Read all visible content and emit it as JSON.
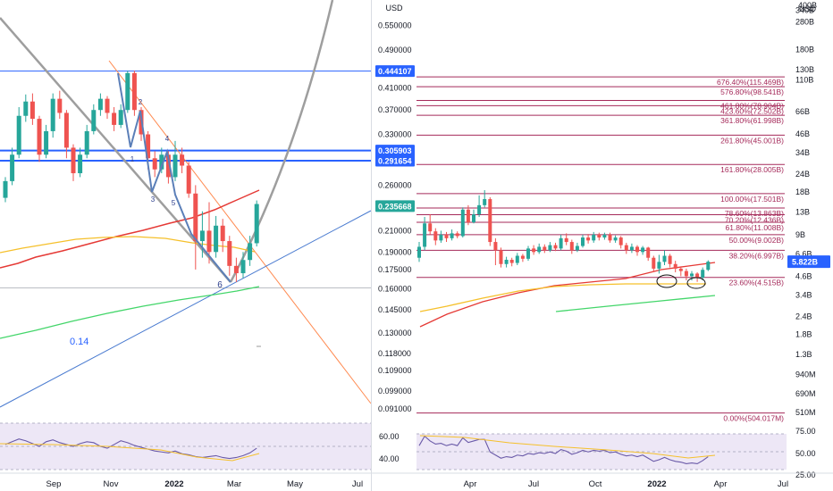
{
  "left_chart": {
    "currency": "USD",
    "y_ticks": [
      "0.550000",
      "0.490000",
      "0.410000",
      "0.370000",
      "0.330000",
      "0.260000",
      "0.210000",
      "0.190000",
      "0.175000",
      "0.160000",
      "0.145000",
      "0.130000",
      "0.118000",
      "0.109000",
      "0.099000",
      "0.091000"
    ],
    "price_badges": [
      {
        "label": "0.444107",
        "color": "#2962ff"
      },
      {
        "label": "0.305903",
        "color": "#2962ff"
      },
      {
        "label": "0.291654",
        "color": "#2962ff"
      },
      {
        "label": "0.235668",
        "color": "#26a69a"
      }
    ],
    "wave_labels": [
      "1",
      "2",
      "3",
      "4",
      "5",
      "6"
    ],
    "annotation": "0.14",
    "x_ticks": [
      "Sep",
      "Nov",
      "2022",
      "Mar",
      "May",
      "Jul"
    ],
    "rsi_ticks": [
      "60.00",
      "40.00"
    ]
  },
  "right_chart": {
    "currency": "USD",
    "y_ticks": [
      "400B",
      "340B",
      "280B",
      "180B",
      "130B",
      "110B",
      "66B",
      "46B",
      "34B",
      "24B",
      "18B",
      "13B",
      "9B",
      "6.6B",
      "4.6B",
      "3.4B",
      "2.4B",
      "1.8B",
      "1.3B",
      "940M",
      "690M",
      "510M"
    ],
    "price_badge": {
      "label": "5.822B",
      "color": "#2962ff"
    },
    "fib_levels": [
      {
        "label": "676.40%(115.469B)"
      },
      {
        "label": "576.80%(98.541B)"
      },
      {
        "label": "461.80%(78.904B)"
      },
      {
        "label": "423.60%(72.502B)"
      },
      {
        "label": "361.80%(61.998B)"
      },
      {
        "label": "261.80%(45.001B)"
      },
      {
        "label": "161.80%(28.005B)"
      },
      {
        "label": "100.00%(17.501B)"
      },
      {
        "label": "78.60%(13.863B)"
      },
      {
        "label": "70.20%(12.436B)"
      },
      {
        "label": "61.80%(11.008B)"
      },
      {
        "label": "50.00%(9.002B)"
      },
      {
        "label": "38.20%(6.997B)"
      },
      {
        "label": "23.60%(4.515B)"
      },
      {
        "label": "0.00%(504.017M)"
      }
    ],
    "x_ticks": [
      "Apr",
      "Jul",
      "Oct",
      "2022",
      "Apr",
      "Jul"
    ],
    "rsi_ticks": [
      "75.00",
      "50.00",
      "25.00"
    ]
  },
  "colors": {
    "fib": "#a52a5a",
    "up": "#26a69a",
    "down": "#ef5350",
    "ma_red": "#e53935",
    "ma_yellow": "#f5c02b",
    "ma_green": "#43d66a",
    "trend_blue": "#2962ff",
    "orange_line": "#ff8a50",
    "gray_line": "#9e9e9e",
    "rsi_bg": "#ede7f6",
    "rsi_line": "#6a5aa8"
  },
  "chart_data": [
    {
      "type": "candlestick",
      "title": "",
      "ylabel": "USD",
      "y_scale": "log",
      "ylim": [
        0.088,
        0.62
      ],
      "x_ticks": [
        "Sep",
        "Nov",
        "2022",
        "Mar",
        "May",
        "Jul"
      ],
      "price_levels": [
        0.444107,
        0.305903,
        0.291654
      ],
      "last_price": 0.235668,
      "indicators": [
        "moving average (red)",
        "moving average (yellow)",
        "moving average (green)",
        "RSI"
      ],
      "candles": [
        {
          "open": 0.245,
          "close": 0.265,
          "high": 0.27,
          "low": 0.24
        },
        {
          "open": 0.265,
          "close": 0.3,
          "high": 0.31,
          "low": 0.26
        },
        {
          "open": 0.3,
          "close": 0.36,
          "high": 0.375,
          "low": 0.295
        },
        {
          "open": 0.36,
          "close": 0.385,
          "high": 0.398,
          "low": 0.35
        },
        {
          "open": 0.385,
          "close": 0.355,
          "high": 0.4,
          "low": 0.345
        },
        {
          "open": 0.355,
          "close": 0.3,
          "high": 0.36,
          "low": 0.29
        },
        {
          "open": 0.3,
          "close": 0.335,
          "high": 0.345,
          "low": 0.295
        },
        {
          "open": 0.335,
          "close": 0.39,
          "high": 0.4,
          "low": 0.325
        },
        {
          "open": 0.39,
          "close": 0.365,
          "high": 0.405,
          "low": 0.355
        },
        {
          "open": 0.365,
          "close": 0.31,
          "high": 0.37,
          "low": 0.295
        },
        {
          "open": 0.31,
          "close": 0.275,
          "high": 0.315,
          "low": 0.265
        },
        {
          "open": 0.275,
          "close": 0.3,
          "high": 0.31,
          "low": 0.27
        },
        {
          "open": 0.3,
          "close": 0.335,
          "high": 0.345,
          "low": 0.295
        },
        {
          "open": 0.335,
          "close": 0.37,
          "high": 0.38,
          "low": 0.33
        },
        {
          "open": 0.37,
          "close": 0.39,
          "high": 0.4,
          "low": 0.36
        },
        {
          "open": 0.39,
          "close": 0.365,
          "high": 0.395,
          "low": 0.355
        },
        {
          "open": 0.365,
          "close": 0.345,
          "high": 0.375,
          "low": 0.335
        },
        {
          "open": 0.345,
          "close": 0.37,
          "high": 0.38,
          "low": 0.34
        },
        {
          "open": 0.37,
          "close": 0.44,
          "high": 0.445,
          "low": 0.365
        },
        {
          "open": 0.44,
          "close": 0.37,
          "high": 0.445,
          "low": 0.36
        },
        {
          "open": 0.37,
          "close": 0.33,
          "high": 0.375,
          "low": 0.32
        },
        {
          "open": 0.33,
          "close": 0.295,
          "high": 0.335,
          "low": 0.28
        },
        {
          "open": 0.295,
          "close": 0.28,
          "high": 0.305,
          "low": 0.27
        },
        {
          "open": 0.28,
          "close": 0.3,
          "high": 0.31,
          "low": 0.275
        },
        {
          "open": 0.3,
          "close": 0.27,
          "high": 0.305,
          "low": 0.262
        },
        {
          "open": 0.27,
          "close": 0.3,
          "high": 0.32,
          "low": 0.265
        },
        {
          "open": 0.3,
          "close": 0.285,
          "high": 0.31,
          "low": 0.275
        },
        {
          "open": 0.285,
          "close": 0.25,
          "high": 0.29,
          "low": 0.245
        },
        {
          "open": 0.25,
          "close": 0.2,
          "high": 0.26,
          "low": 0.175
        },
        {
          "open": 0.2,
          "close": 0.21,
          "high": 0.23,
          "low": 0.185
        },
        {
          "open": 0.21,
          "close": 0.19,
          "high": 0.24,
          "low": 0.18
        },
        {
          "open": 0.19,
          "close": 0.215,
          "high": 0.225,
          "low": 0.185
        },
        {
          "open": 0.215,
          "close": 0.2,
          "high": 0.222,
          "low": 0.19
        },
        {
          "open": 0.2,
          "close": 0.178,
          "high": 0.205,
          "low": 0.17
        },
        {
          "open": 0.178,
          "close": 0.172,
          "high": 0.185,
          "low": 0.165
        },
        {
          "open": 0.172,
          "close": 0.183,
          "high": 0.19,
          "low": 0.168
        },
        {
          "open": 0.183,
          "close": 0.198,
          "high": 0.205,
          "low": 0.178
        },
        {
          "open": 0.198,
          "close": 0.238,
          "high": 0.242,
          "low": 0.195
        }
      ],
      "rsi": [
        52,
        55,
        58,
        56,
        53,
        50,
        55,
        57,
        54,
        52,
        50,
        53,
        55,
        54,
        50,
        48,
        52,
        56,
        54,
        51,
        49,
        47,
        45,
        44,
        43,
        45,
        42,
        41,
        39,
        38,
        39,
        40,
        38,
        37,
        38,
        40,
        43,
        48
      ]
    },
    {
      "type": "candlestick",
      "title": "",
      "ylabel": "USD",
      "y_scale": "log",
      "ylim": [
        0.48,
        400
      ],
      "x_ticks": [
        "Apr",
        "Jul",
        "Oct",
        "2022",
        "Apr",
        "Jul"
      ],
      "last_price": 5.822,
      "fib_levels": [
        {
          "ratio": 6.764,
          "value": 115.469
        },
        {
          "ratio": 5.768,
          "value": 98.541
        },
        {
          "ratio": 4.618,
          "value": 78.904
        },
        {
          "ratio": 4.236,
          "value": 72.502
        },
        {
          "ratio": 3.618,
          "value": 61.998
        },
        {
          "ratio": 2.618,
          "value": 45.001
        },
        {
          "ratio": 1.618,
          "value": 28.005
        },
        {
          "ratio": 1.0,
          "value": 17.501
        },
        {
          "ratio": 0.786,
          "value": 13.863
        },
        {
          "ratio": 0.702,
          "value": 12.436
        },
        {
          "ratio": 0.618,
          "value": 11.008
        },
        {
          "ratio": 0.5,
          "value": 9.002
        },
        {
          "ratio": 0.382,
          "value": 6.997
        },
        {
          "ratio": 0.236,
          "value": 4.515
        },
        {
          "ratio": 0.0,
          "value": 0.504
        }
      ],
      "indicators": [
        "moving average (red)",
        "moving average (yellow)",
        "moving average (green)",
        "RSI"
      ],
      "candles": [
        {
          "open": 6.2,
          "close": 7.4,
          "high": 8.0,
          "low": 5.8
        },
        {
          "open": 7.4,
          "close": 10.8,
          "high": 12.0,
          "low": 7.0
        },
        {
          "open": 10.8,
          "close": 9.5,
          "high": 12.5,
          "low": 9.0
        },
        {
          "open": 9.5,
          "close": 8.2,
          "high": 10.0,
          "low": 7.6
        },
        {
          "open": 8.2,
          "close": 9.0,
          "high": 9.6,
          "low": 7.9
        },
        {
          "open": 9.0,
          "close": 8.5,
          "high": 9.4,
          "low": 8.0
        },
        {
          "open": 8.5,
          "close": 9.2,
          "high": 9.8,
          "low": 8.2
        },
        {
          "open": 9.2,
          "close": 8.8,
          "high": 9.5,
          "low": 8.5
        },
        {
          "open": 8.8,
          "close": 13.5,
          "high": 14.0,
          "low": 8.6
        },
        {
          "open": 13.5,
          "close": 11.0,
          "high": 14.5,
          "low": 10.5
        },
        {
          "open": 11.0,
          "close": 12.5,
          "high": 13.5,
          "low": 10.8
        },
        {
          "open": 12.5,
          "close": 14.5,
          "high": 17.0,
          "low": 12.0
        },
        {
          "open": 14.5,
          "close": 16.0,
          "high": 18.5,
          "low": 14.0
        },
        {
          "open": 16.0,
          "close": 8.0,
          "high": 16.5,
          "low": 7.5
        },
        {
          "open": 8.0,
          "close": 7.0,
          "high": 8.5,
          "low": 5.5
        },
        {
          "open": 7.0,
          "close": 5.6,
          "high": 7.3,
          "low": 5.3
        },
        {
          "open": 5.6,
          "close": 6.0,
          "high": 6.3,
          "low": 5.3
        },
        {
          "open": 6.0,
          "close": 5.7,
          "high": 6.2,
          "low": 5.4
        },
        {
          "open": 5.7,
          "close": 6.4,
          "high": 6.7,
          "low": 5.5
        },
        {
          "open": 6.4,
          "close": 6.1,
          "high": 6.6,
          "low": 5.8
        },
        {
          "open": 6.1,
          "close": 7.2,
          "high": 7.5,
          "low": 5.9
        },
        {
          "open": 7.2,
          "close": 6.8,
          "high": 7.6,
          "low": 6.5
        },
        {
          "open": 6.8,
          "close": 7.4,
          "high": 7.8,
          "low": 6.6
        },
        {
          "open": 7.4,
          "close": 7.0,
          "high": 7.7,
          "low": 6.7
        },
        {
          "open": 7.0,
          "close": 7.6,
          "high": 8.0,
          "low": 6.8
        },
        {
          "open": 7.6,
          "close": 7.2,
          "high": 7.9,
          "low": 6.9
        },
        {
          "open": 7.2,
          "close": 8.5,
          "high": 9.0,
          "low": 7.0
        },
        {
          "open": 8.5,
          "close": 8.0,
          "high": 9.2,
          "low": 7.6
        },
        {
          "open": 8.0,
          "close": 7.0,
          "high": 8.3,
          "low": 6.6
        },
        {
          "open": 7.0,
          "close": 7.5,
          "high": 7.9,
          "low": 6.8
        },
        {
          "open": 7.5,
          "close": 8.6,
          "high": 9.0,
          "low": 7.3
        },
        {
          "open": 8.6,
          "close": 8.2,
          "high": 9.1,
          "low": 7.8
        },
        {
          "open": 8.2,
          "close": 9.0,
          "high": 9.4,
          "low": 7.9
        },
        {
          "open": 9.0,
          "close": 8.6,
          "high": 9.3,
          "low": 8.2
        },
        {
          "open": 8.6,
          "close": 9.0,
          "high": 9.3,
          "low": 8.3
        },
        {
          "open": 9.0,
          "close": 8.2,
          "high": 9.3,
          "low": 7.9
        },
        {
          "open": 8.2,
          "close": 8.6,
          "high": 8.9,
          "low": 7.9
        },
        {
          "open": 8.6,
          "close": 7.6,
          "high": 8.8,
          "low": 7.2
        },
        {
          "open": 7.6,
          "close": 7.0,
          "high": 7.9,
          "low": 6.6
        },
        {
          "open": 7.0,
          "close": 7.4,
          "high": 7.8,
          "low": 6.7
        },
        {
          "open": 7.4,
          "close": 6.8,
          "high": 7.6,
          "low": 6.4
        },
        {
          "open": 6.8,
          "close": 7.3,
          "high": 7.5,
          "low": 6.5
        },
        {
          "open": 7.3,
          "close": 6.2,
          "high": 7.4,
          "low": 5.9
        },
        {
          "open": 6.2,
          "close": 5.2,
          "high": 6.4,
          "low": 4.9
        },
        {
          "open": 5.2,
          "close": 5.8,
          "high": 6.5,
          "low": 4.8
        },
        {
          "open": 5.8,
          "close": 6.4,
          "high": 7.0,
          "low": 5.5
        },
        {
          "open": 6.4,
          "close": 5.6,
          "high": 6.6,
          "low": 5.3
        },
        {
          "open": 5.6,
          "close": 5.2,
          "high": 5.9,
          "low": 4.9
        },
        {
          "open": 5.2,
          "close": 5.0,
          "high": 5.4,
          "low": 4.6
        },
        {
          "open": 5.0,
          "close": 4.6,
          "high": 5.2,
          "low": 4.3
        },
        {
          "open": 4.6,
          "close": 4.8,
          "high": 5.0,
          "low": 4.3
        },
        {
          "open": 4.8,
          "close": 4.5,
          "high": 4.9,
          "low": 4.2
        },
        {
          "open": 4.5,
          "close": 5.1,
          "high": 5.3,
          "low": 4.3
        },
        {
          "open": 5.1,
          "close": 5.82,
          "high": 5.95,
          "low": 5.0
        }
      ],
      "rsi": [
        60,
        72,
        66,
        62,
        63,
        60,
        62,
        60,
        70,
        64,
        66,
        68,
        68,
        52,
        48,
        44,
        46,
        45,
        48,
        47,
        50,
        49,
        51,
        50,
        52,
        50,
        55,
        53,
        49,
        51,
        54,
        52,
        54,
        53,
        54,
        51,
        52,
        49,
        47,
        48,
        46,
        48,
        44,
        40,
        42,
        45,
        42,
        40,
        39,
        37,
        38,
        37,
        41,
        46
      ]
    }
  ]
}
